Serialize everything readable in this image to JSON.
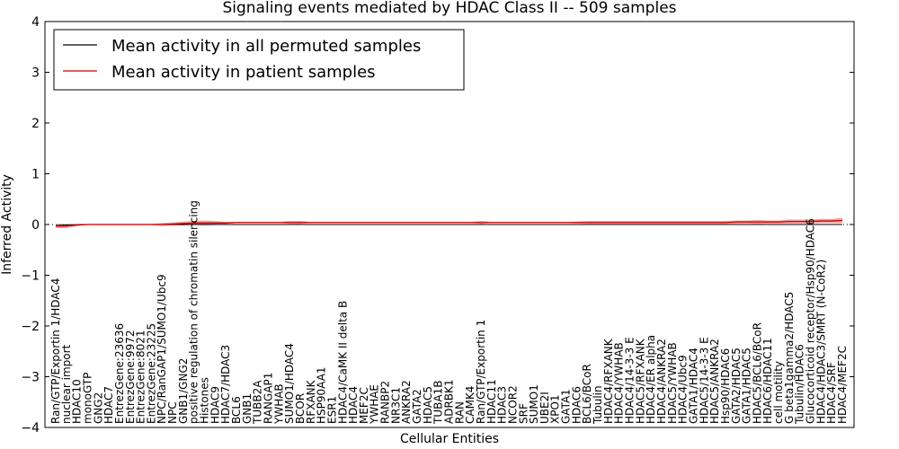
{
  "chart_data": {
    "type": "line",
    "title": "Signaling events mediated by HDAC Class II -- 509 samples",
    "xlabel": "Cellular Entities",
    "ylabel": "Inferred Activity",
    "ylim": [
      -4,
      4
    ],
    "yticks": [
      -4,
      -3,
      -2,
      -1,
      0,
      1,
      2,
      3,
      4
    ],
    "ytick_labels": [
      "−4",
      "−3",
      "−2",
      "−1",
      "0",
      "1",
      "2",
      "3",
      "4"
    ],
    "grid": false,
    "legend_position": "top-left",
    "categories": [
      "Ran/GTP/Exportin 1/HDAC4",
      "nuclear import",
      "HDAC10",
      "monoGTP",
      "GNG2",
      "HDAC7",
      "EntrezGene:23636",
      "EntrezGene:9972",
      "EntrezGene:8021",
      "EntrezGene:23225",
      "NPC/RanGAP1/SUMO1/Ubc9",
      "NPC",
      "GNB1/GNG2",
      "positive regulation of chromatin silencing",
      "Histones",
      "HDAC9",
      "HDAC7/HDAC3",
      "BCL6",
      "GNB1",
      "TUBB2A",
      "RANGAP1",
      "YWHAB",
      "SUMO1/HDAC4",
      "BCOR",
      "RFXANK",
      "HSP90AA1",
      "ESR1",
      "HDAC4/CaMK II delta B",
      "HDAC4",
      "MEF2C",
      "YWHAE",
      "RANBP2",
      "NR3C1",
      "ANKRA2",
      "GATA2",
      "HDAC5",
      "TUBA1B",
      "ADRBK1",
      "RAN",
      "CAMK4",
      "Ran/GTP/Exportin 1",
      "HDAC11",
      "HDAC3",
      "NCOR2",
      "SRF",
      "SUMO1",
      "UBE2I",
      "XPO1",
      "GATA1",
      "HDAC6",
      "BCL6/BCoR",
      "Tubulin",
      "HDAC4/RFXANK",
      "HDAC4/YWHAB",
      "HDAC4/14-3-3 E",
      "HDAC5/RFXANK",
      "HDAC4/ER alpha",
      "HDAC4/ANKRA2",
      "HDAC5/YWHAB",
      "HDAC4/Ubc9",
      "GATA1/HDAC4",
      "HDAC5/14-3-3 E",
      "HDAC5/ANKRA2",
      "Hsp90/HDAC6",
      "GATA2/HDAC5",
      "GATA1/HDAC5",
      "HDAC5/BCL6/BCoR",
      "HDAC6/HDAC11",
      "cell motility",
      "G beta1gamma2/HDAC5",
      "Tubulin/HDAC6",
      "Glucocorticoid receptor/Hsp90/HDAC6",
      "HDAC4/HDAC3/SMRT (N-CoR2)",
      "HDAC4/SRF",
      "HDAC4/MEF2C"
    ],
    "series": [
      {
        "name": "Mean activity in all permuted samples",
        "color": "#000000",
        "values": [
          -0.02,
          -0.01,
          -0.005,
          0,
          0,
          0,
          0,
          0,
          0,
          0,
          0,
          0,
          0,
          0,
          0,
          0,
          0,
          0,
          0,
          0,
          0,
          0,
          0,
          0,
          0,
          0,
          0,
          0,
          0,
          0,
          0,
          0,
          0,
          0,
          0,
          0,
          0,
          0,
          0,
          0,
          0,
          0,
          0,
          0,
          0,
          0,
          0,
          0,
          0,
          0,
          0,
          0,
          0,
          0,
          0,
          0,
          0,
          0,
          0,
          0,
          0,
          0,
          0,
          0,
          0,
          0,
          0,
          0,
          0,
          0,
          0,
          0,
          0,
          0,
          0
        ]
      },
      {
        "name": "Mean activity in patient samples",
        "color": "#cc0000",
        "band_color": "#f08080",
        "values": [
          -0.03,
          -0.03,
          -0.01,
          0,
          0,
          0,
          0,
          0,
          0,
          0,
          0,
          0.01,
          0.02,
          0.03,
          0.03,
          0.03,
          0.03,
          0.04,
          0.04,
          0.04,
          0.04,
          0.04,
          0.04,
          0.04,
          0.04,
          0.04,
          0.04,
          0.04,
          0.04,
          0.04,
          0.04,
          0.04,
          0.04,
          0.04,
          0.04,
          0.04,
          0.04,
          0.04,
          0.04,
          0.04,
          0.04,
          0.04,
          0.04,
          0.04,
          0.04,
          0.04,
          0.04,
          0.04,
          0.04,
          0.04,
          0.04,
          0.04,
          0.04,
          0.04,
          0.04,
          0.04,
          0.04,
          0.04,
          0.04,
          0.04,
          0.04,
          0.04,
          0.04,
          0.04,
          0.05,
          0.05,
          0.05,
          0.05,
          0.05,
          0.06,
          0.06,
          0.06,
          0.07,
          0.07,
          0.08
        ],
        "band": [
          0.04,
          0.04,
          0.02,
          0.01,
          0.01,
          0.01,
          0.01,
          0.01,
          0.01,
          0.01,
          0.03,
          0.03,
          0.04,
          0.04,
          0.05,
          0.04,
          0.02,
          0.01,
          0.01,
          0.01,
          0.01,
          0.01,
          0.03,
          0.03,
          0.01,
          0.01,
          0.01,
          0.01,
          0.01,
          0.01,
          0.01,
          0.01,
          0.01,
          0.01,
          0.01,
          0.01,
          0.01,
          0.01,
          0.01,
          0.01,
          0.03,
          0.01,
          0.01,
          0.01,
          0.01,
          0.01,
          0.01,
          0.01,
          0.01,
          0.02,
          0.03,
          0.03,
          0.03,
          0.03,
          0.03,
          0.03,
          0.03,
          0.03,
          0.03,
          0.03,
          0.03,
          0.03,
          0.03,
          0.03,
          0.03,
          0.03,
          0.04,
          0.03,
          0.03,
          0.04,
          0.04,
          0.04,
          0.04,
          0.04,
          0.05
        ]
      }
    ]
  }
}
